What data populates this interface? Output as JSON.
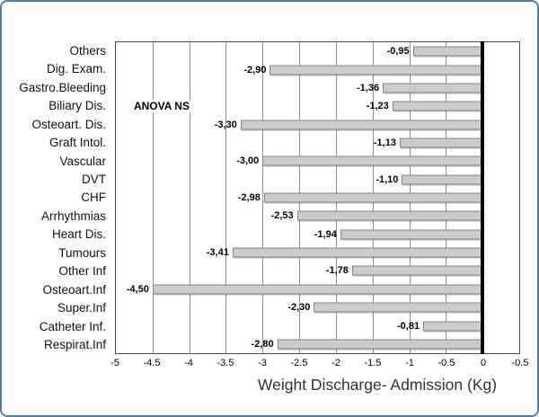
{
  "frame": {
    "border_color": "#4e7fb5",
    "background_color": "#ffffff"
  },
  "chart_data": {
    "type": "bar",
    "orientation": "horizontal",
    "title": "",
    "xlabel": "Weight Discharge- Admission (Kg)",
    "ylabel": "",
    "xlim": [
      -5,
      0.5
    ],
    "grid": "vertical",
    "legend": "none",
    "annotation": "ANOVA NS",
    "categories": [
      "Others",
      "Dig. Exam.",
      "Gastro.Bleeding",
      "Biliary Dis.",
      "Osteoart. Dis.",
      "Graft Intol.",
      "Vascular",
      "DVT",
      "CHF",
      "Arrhythmias",
      "Heart Dis.",
      "Tumours",
      "Other Inf",
      "Osteoart.Inf",
      "Super.Inf",
      "Catheter Inf.",
      "Respirat.Inf"
    ],
    "values": [
      -0.95,
      -2.9,
      -1.36,
      -1.23,
      -3.3,
      -1.13,
      -3.0,
      -1.1,
      -2.98,
      -2.53,
      -1.94,
      -3.41,
      -1.78,
      -4.5,
      -2.3,
      -0.81,
      -2.8
    ],
    "value_labels": [
      "-0,95",
      "-2,90",
      "-1,36",
      "-1,23",
      "-3,30",
      "-1,13",
      "-3,00",
      "-1,10",
      "-2,98",
      "-2,53",
      "-1,94",
      "-3,41",
      "-1,78",
      "-4,50",
      "-2,30",
      "-0,81",
      "-2,80"
    ],
    "x_tick_labels": [
      "-5",
      "-4.5",
      "-4",
      "-3.5",
      "-3",
      "-2.5",
      "-2",
      "-1.5",
      "-1",
      "-0.5",
      "0",
      "-0.5"
    ],
    "bar_color": "#cbcbcb",
    "bar_border_color": "#858585",
    "grid_color": "#8f8f8f",
    "zero_line_color": "#000000"
  }
}
